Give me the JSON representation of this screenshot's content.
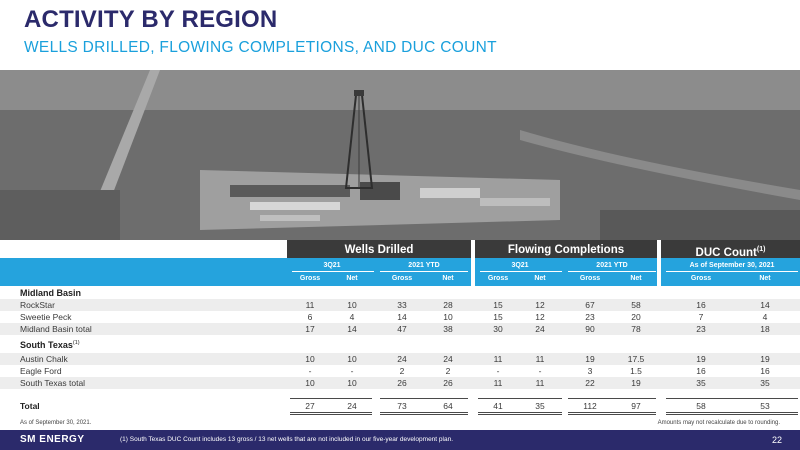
{
  "header": {
    "title": "ACTIVITY BY REGION",
    "subtitle": "WELLS DRILLED, FLOWING COMPLETIONS, AND DUC COUNT"
  },
  "groups": {
    "wells_drilled": "Wells Drilled",
    "flowing_completions": "Flowing Completions",
    "duc_count": "DUC Count",
    "duc_count_note": "(1)"
  },
  "periods": {
    "wd_q": "3Q21",
    "wd_ytd": "2021 YTD",
    "fc_q": "3Q21",
    "fc_ytd": "2021 YTD",
    "duc": "As of September 30, 2021"
  },
  "columns": [
    "Gross",
    "Net",
    "Gross",
    "Net",
    "Gross",
    "Net",
    "Gross",
    "Net",
    "Gross",
    "Net"
  ],
  "sections": {
    "midland": "Midland Basin",
    "south_texas": "South Texas",
    "south_texas_note": "(1)"
  },
  "rows": {
    "rockstar": {
      "label": "RockStar",
      "values": [
        "11",
        "10",
        "33",
        "28",
        "15",
        "12",
        "67",
        "58",
        "16",
        "14"
      ]
    },
    "sweetie_peck": {
      "label": "Sweetie Peck",
      "values": [
        "6",
        "4",
        "14",
        "10",
        "15",
        "12",
        "23",
        "20",
        "7",
        "4"
      ]
    },
    "midland_total": {
      "label": "Midland Basin total",
      "values": [
        "17",
        "14",
        "47",
        "38",
        "30",
        "24",
        "90",
        "78",
        "23",
        "18"
      ]
    },
    "austin_chalk": {
      "label": "Austin Chalk",
      "values": [
        "10",
        "10",
        "24",
        "24",
        "11",
        "11",
        "19",
        "17.5",
        "19",
        "19"
      ]
    },
    "eagle_ford": {
      "label": "Eagle Ford",
      "values": [
        "-",
        "-",
        "2",
        "2",
        "-",
        "-",
        "3",
        "1.5",
        "16",
        "16"
      ]
    },
    "south_texas_total": {
      "label": "South Texas total",
      "values": [
        "10",
        "10",
        "26",
        "26",
        "11",
        "11",
        "22",
        "19",
        "35",
        "35"
      ]
    },
    "total": {
      "label": "Total",
      "values": [
        "27",
        "24",
        "73",
        "64",
        "41",
        "35",
        "112",
        "97",
        "58",
        "53"
      ]
    }
  },
  "notes": {
    "as_of": "As of September 30, 2021.",
    "rounding": "Amounts may not recalculate due to rounding."
  },
  "footer": {
    "logo": "SM ENERGY",
    "footnote": "(1)    South Texas DUC Count includes 13 gross / 13 net wells that are not included in our five-year development plan.",
    "page": "22"
  }
}
